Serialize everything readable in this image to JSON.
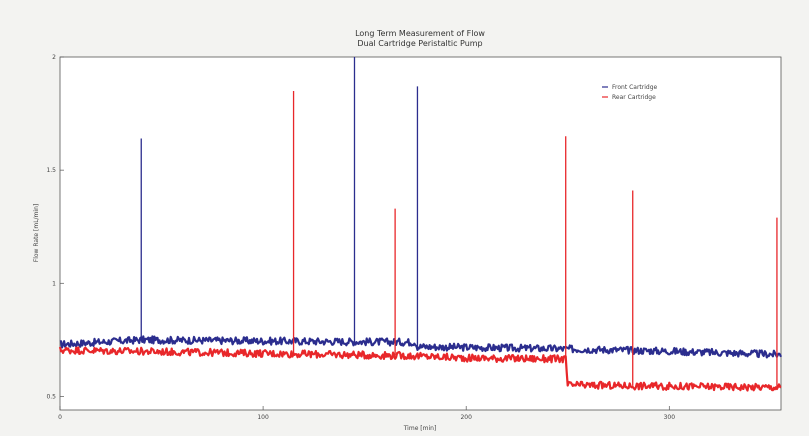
{
  "chart_data": {
    "type": "line",
    "title": "Long Term Measurement of Flow",
    "subtitle": "Dual Cartridge Peristaltic Pump",
    "xlabel": "Time [min]",
    "ylabel": "Flow Rate [mL/min]",
    "xlim": [
      0,
      355
    ],
    "ylim": [
      0.44,
      2.0
    ],
    "x_ticks": [
      {
        "value": 0,
        "label": "0"
      },
      {
        "value": 100,
        "label": "100"
      },
      {
        "value": 200,
        "label": "200"
      },
      {
        "value": 300,
        "label": "300"
      }
    ],
    "y_ticks": [
      {
        "value": 0.5,
        "label": "0.5"
      },
      {
        "value": 1,
        "label": "1"
      },
      {
        "value": 1.5,
        "label": "1.5"
      },
      {
        "value": 2,
        "label": "2"
      }
    ],
    "grid": false,
    "legend_position": "top-right",
    "series": [
      {
        "name": "Front Cartridge",
        "color": "#2b2d8e",
        "baseline": [
          [
            0,
            0.73
          ],
          [
            40,
            0.75
          ],
          [
            100,
            0.745
          ],
          [
            175,
            0.74
          ],
          [
            176,
            0.72
          ],
          [
            250,
            0.71
          ],
          [
            300,
            0.7
          ],
          [
            355,
            0.685
          ]
        ],
        "spikes": [
          [
            40,
            1.64
          ],
          [
            145,
            2.0
          ],
          [
            176,
            1.87
          ]
        ]
      },
      {
        "name": "Rear Cartridge",
        "color": "#e8272a",
        "baseline": [
          [
            0,
            0.705
          ],
          [
            100,
            0.69
          ],
          [
            170,
            0.68
          ],
          [
            200,
            0.67
          ],
          [
            249,
            0.665
          ],
          [
            250,
            0.55
          ],
          [
            300,
            0.545
          ],
          [
            355,
            0.54
          ]
        ],
        "spikes": [
          [
            115,
            1.85
          ],
          [
            165,
            1.33
          ],
          [
            249,
            1.65
          ],
          [
            282,
            1.41
          ],
          [
            353,
            1.29
          ]
        ]
      }
    ]
  }
}
